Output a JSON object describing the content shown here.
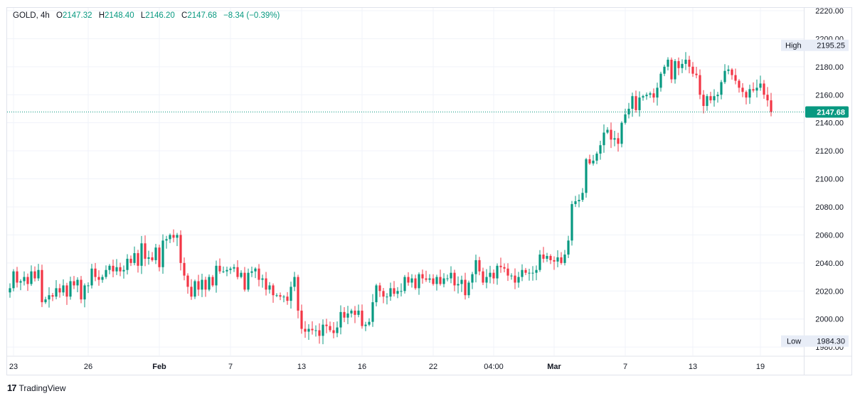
{
  "legend": {
    "symbol": "GOLD",
    "interval": "4h",
    "open_label": "O",
    "open": "2147.32",
    "high_label": "H",
    "high": "2148.40",
    "low_label": "L",
    "low": "2146.20",
    "close_label": "C",
    "close": "2147.68",
    "change": "−8.34 (−0.39%)"
  },
  "footer": {
    "logo": "17",
    "brand": "TradingView"
  },
  "colors": {
    "up": "#089981",
    "down": "#f23645",
    "grid": "#f0f3fa",
    "axis_text": "#131722",
    "price_tag": "#089981"
  },
  "chart_data": {
    "type": "candlestick",
    "title": "GOLD, 4h",
    "ylim": [
      1974,
      2222
    ],
    "y_ticks": [
      "2220.00",
      "2200.00",
      "2180.00",
      "2160.00",
      "2140.00",
      "2120.00",
      "2100.00",
      "2080.00",
      "2060.00",
      "2040.00",
      "2020.00",
      "2000.00",
      "1980.00"
    ],
    "x_ticks": [
      "23",
      "26",
      "Feb",
      "7",
      "13",
      "16",
      "22",
      "04:00",
      "Mar",
      "7",
      "13",
      "19"
    ],
    "x_tick_index": [
      1,
      22,
      42,
      62,
      82,
      99,
      119,
      136,
      153,
      173,
      192,
      211
    ],
    "x_bold": [
      "Feb",
      "Mar"
    ],
    "markers": {
      "high_label": "High",
      "high_value": "2195.25",
      "high": 2195.25,
      "low_label": "Low",
      "low_value": "1984.30",
      "low": 1984.3,
      "last_value": "2147.68",
      "last": 2147.68
    },
    "closes": [
      2022,
      2034,
      2026,
      2027,
      2030,
      2025,
      2034,
      2029,
      2035,
      2012,
      2014,
      2017,
      2016,
      2022,
      2019,
      2024,
      2016,
      2027,
      2024,
      2028,
      2014,
      2024,
      2024,
      2036,
      2030,
      2028,
      2030,
      2035,
      2038,
      2034,
      2037,
      2034,
      2035,
      2043,
      2040,
      2047,
      2038,
      2054,
      2043,
      2044,
      2042,
      2051,
      2037,
      2056,
      2057,
      2060,
      2058,
      2060,
      2040,
      2031,
      2023,
      2016,
      2027,
      2021,
      2028,
      2021,
      2030,
      2024,
      2038,
      2034,
      2034,
      2035,
      2036,
      2037,
      2030,
      2033,
      2021,
      2033,
      2034,
      2036,
      2028,
      2029,
      2021,
      2024,
      2017,
      2017,
      2016,
      2016,
      2013,
      2023,
      2030,
      2006,
      1993,
      1991,
      1993,
      1992,
      1992,
      1988,
      1996,
      1995,
      1992,
      1990,
      1994,
      2005,
      2001,
      2004,
      2006,
      2003,
      2006,
      1995,
      1996,
      1998,
      2012,
      2024,
      2020,
      2016,
      2016,
      2022,
      2018,
      2020,
      2020,
      2030,
      2026,
      2029,
      2022,
      2032,
      2029,
      2028,
      2029,
      2025,
      2030,
      2025,
      2029,
      2029,
      2033,
      2024,
      2025,
      2028,
      2017,
      2026,
      2032,
      2042,
      2034,
      2026,
      2030,
      2033,
      2029,
      2038,
      2037,
      2036,
      2031,
      2031,
      2026,
      2030,
      2035,
      2033,
      2033,
      2033,
      2035,
      2046,
      2043,
      2045,
      2042,
      2041,
      2044,
      2040,
      2046,
      2056,
      2082,
      2084,
      2085,
      2090,
      2114,
      2111,
      2113,
      2118,
      2124,
      2133,
      2135,
      2128,
      2129,
      2125,
      2140,
      2146,
      2150,
      2159,
      2149,
      2158,
      2159,
      2160,
      2161,
      2158,
      2165,
      2175,
      2180,
      2185,
      2171,
      2184,
      2179,
      2182,
      2185,
      2180,
      2175,
      2174,
      2160,
      2152,
      2159,
      2156,
      2159,
      2160,
      2169,
      2177,
      2178,
      2174,
      2170,
      2165,
      2162,
      2158,
      2164,
      2163,
      2165,
      2168,
      2160,
      2156,
      2147.68
    ]
  }
}
